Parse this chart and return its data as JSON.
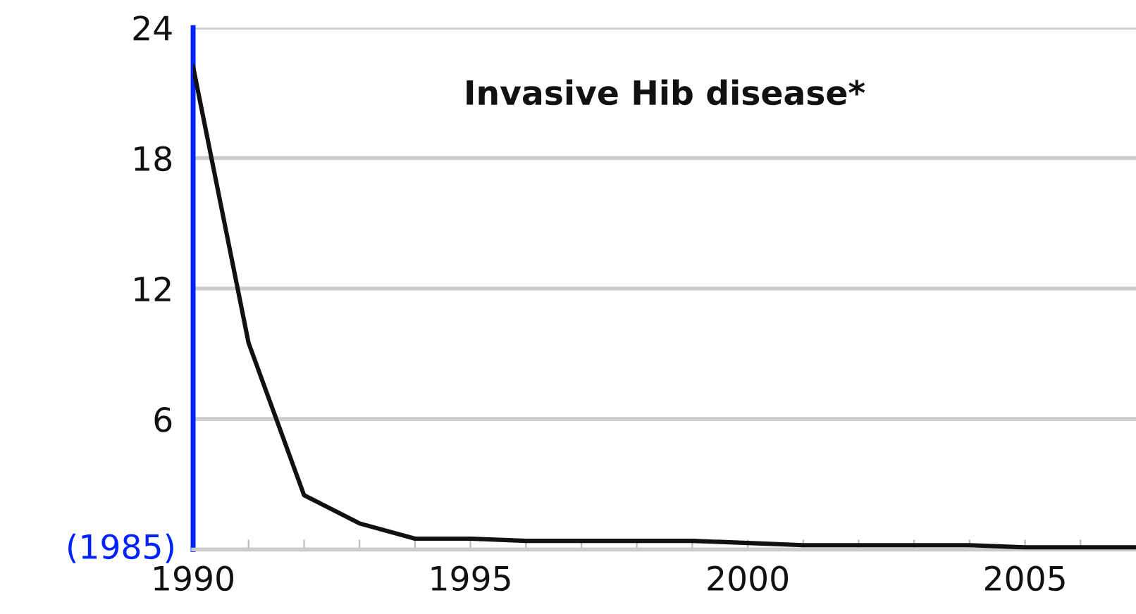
{
  "chart_data": {
    "type": "line",
    "title": "Invasive Hib disease*",
    "x": [
      1990,
      1991,
      1992,
      1993,
      1994,
      1995,
      1996,
      1997,
      1998,
      1999,
      2000,
      2001,
      2002,
      2003,
      2004,
      2005,
      2006,
      2007
    ],
    "series": [
      {
        "color": "#111111",
        "values": [
          22.2,
          9.5,
          2.5,
          1.2,
          0.5,
          0.5,
          0.4,
          0.4,
          0.4,
          0.4,
          0.3,
          0.2,
          0.2,
          0.2,
          0.2,
          0.1,
          0.1,
          0.1
        ]
      }
    ],
    "xlim": [
      1990,
      2007
    ],
    "ylim": [
      0,
      24
    ],
    "xticks": [
      1990,
      {
        "value": 1991,
        "label": null
      },
      {
        "value": 1992,
        "label": null
      },
      {
        "value": 1993,
        "label": null
      },
      {
        "value": 1994,
        "label": null
      },
      1995,
      {
        "value": 1996,
        "label": null
      },
      {
        "value": 1997,
        "label": null
      },
      {
        "value": 1998,
        "label": null
      },
      {
        "value": 1999,
        "label": null
      },
      2000,
      {
        "value": 2001,
        "label": null
      },
      {
        "value": 2002,
        "label": null
      },
      {
        "value": 2003,
        "label": null
      },
      {
        "value": 2004,
        "label": null
      },
      2005,
      {
        "value": 2006,
        "label": null
      }
    ],
    "yticks": [
      {
        "value": 0,
        "label": null
      },
      6,
      12,
      18,
      24
    ],
    "annotations": [
      "(1985)"
    ],
    "grid": "y",
    "legend": false,
    "marker": "none",
    "line_style": "solid"
  }
}
